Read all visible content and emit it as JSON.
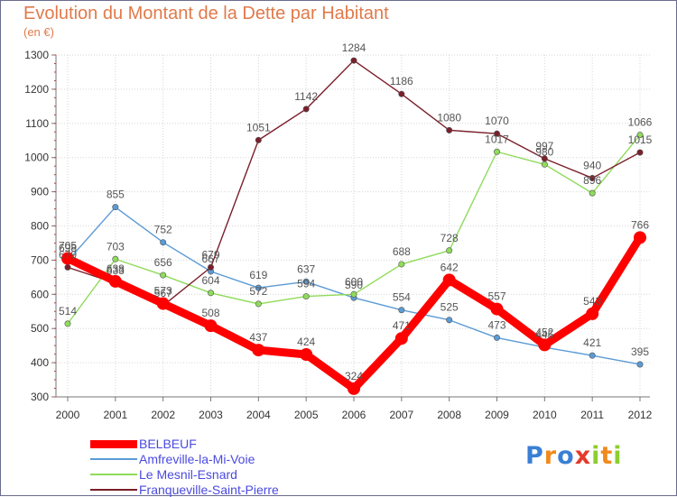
{
  "chart_data": {
    "type": "line",
    "title": "Evolution du Montant de la Dette par Habitant",
    "subtitle": "(en €)",
    "xlabel": "",
    "ylabel": "",
    "x": [
      "2000",
      "2001",
      "2002",
      "2003",
      "2004",
      "2005",
      "2006",
      "2007",
      "2008",
      "2009",
      "2010",
      "2011",
      "2012"
    ],
    "ylim": [
      300,
      1300
    ],
    "yticks": [
      300,
      400,
      500,
      600,
      700,
      800,
      900,
      1000,
      1100,
      1200,
      1300
    ],
    "grid": true,
    "legend_position": "bottom-left",
    "series": [
      {
        "name": "BELBEUF",
        "color": "#ff0000",
        "values": [
          705,
          638,
          573,
          508,
          437,
          424,
          324,
          471,
          642,
          557,
          452,
          543,
          766
        ]
      },
      {
        "name": "Amfreville-la-Mi-Voie",
        "color": "#5b9bd5",
        "values": [
          698,
          855,
          752,
          667,
          619,
          637,
          590,
          554,
          525,
          473,
          445,
          421,
          395
        ]
      },
      {
        "name": "Le Mesnil-Esnard",
        "color": "#8fdb5a",
        "values": [
          514,
          703,
          656,
          604,
          572,
          594,
          600,
          688,
          728,
          1017,
          980,
          896,
          1066
        ]
      },
      {
        "name": "Franqueville-Saint-Pierre",
        "color": "#7a1f2b",
        "values": [
          679,
          633,
          567,
          679,
          1051,
          1142,
          1284,
          1186,
          1080,
          1070,
          997,
          940,
          1015
        ]
      }
    ]
  },
  "logo": {
    "letters": [
      {
        "char": "P",
        "color": "#3a7fd5"
      },
      {
        "char": "r",
        "color": "#f08a1c"
      },
      {
        "char": "o",
        "color": "#3a7fd5"
      },
      {
        "char": "x",
        "color": "#e53a2a"
      },
      {
        "char": "i",
        "color": "#8ccf2e"
      },
      {
        "char": "t",
        "color": "#f08a1c"
      },
      {
        "char": "i",
        "color": "#8ccf2e"
      }
    ]
  }
}
